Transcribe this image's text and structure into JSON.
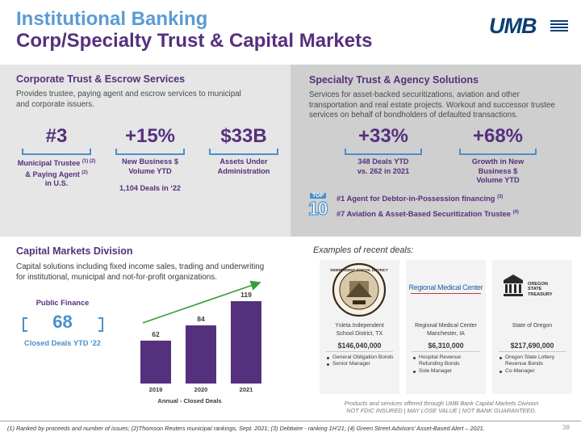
{
  "header": {
    "title_line1": "Institutional Banking",
    "title_line2": "Corp/Specialty Trust & Capital Markets",
    "logo_text": "UMB"
  },
  "corporate_trust": {
    "heading": "Corporate Trust & Escrow Services",
    "description_1": "Provides trustee, paying agent and escrow services to municipal",
    "description_2": "and corporate issuers.",
    "stats": [
      {
        "value": "#3",
        "label_1": "Municipal Trustee",
        "label_1_sup": "(1) (2)",
        "label_2": "& Paying Agent",
        "label_2_sup": "(2)",
        "label_3": "in U.S."
      },
      {
        "value": "+15%",
        "label_1": "New Business $",
        "label_2": "Volume YTD",
        "extra": "1,104 Deals in ‘22"
      },
      {
        "value": "$33B",
        "label_1": "Assets Under",
        "label_2": "Administration"
      }
    ]
  },
  "specialty_trust": {
    "heading": "Specialty Trust & Agency Solutions",
    "description_1": "Services for asset-backed securitizations, aviation and other",
    "description_2": "transportation and real estate projects. Workout and successor trustee",
    "description_3": "services on behalf of bondholders of defaulted transactions.",
    "stats": [
      {
        "value": "+33%",
        "label_1": "348 Deals YTD",
        "label_2": "vs. 262 in 2021"
      },
      {
        "value": "+68%",
        "label_1": "Growth in New",
        "label_2": "Business $",
        "label_3": "Volume YTD"
      }
    ],
    "top10_badge_top": "TOP",
    "top10_badge_num": "10",
    "rankings": [
      {
        "text": "#1 Agent for Debtor-in-Possession financing",
        "sup": "(3)"
      },
      {
        "text": "#7 Aviation & Asset-Based Securitization Trustee",
        "sup": "(4)"
      }
    ]
  },
  "capital_markets": {
    "heading": "Capital Markets Division",
    "description_1": "Capital solutions including fixed income sales, trading and underwriting",
    "description_2": "for institutional, municipal and not-for-profit organizations.",
    "public_finance_label": "Public Finance",
    "public_finance_value": "68",
    "public_finance_caption": "Closed Deals YTD ‘22"
  },
  "chart_data": {
    "type": "bar",
    "categories": [
      "2019",
      "2020",
      "2021"
    ],
    "values": [
      62,
      84,
      119
    ],
    "xlabel": "Annual - Closed Deals",
    "ylim": [
      0,
      140
    ],
    "bar_color": "#55307c",
    "trend_arrow_color": "#3b9a3b"
  },
  "examples": {
    "heading": "Examples of recent deals:",
    "deals": [
      {
        "logo_caption": "INDEPENDENT SCHOOL DISTRICT",
        "org_1": "Ysleta Independent",
        "org_2": "School District, TX",
        "amount": "$146,040,000",
        "items": [
          "General Obligation Bonds",
          "Senior Manager"
        ]
      },
      {
        "logo_caption": "Regional Medical Center",
        "org_1": "Regional Medical Center",
        "org_2": "Manchester, IA",
        "amount": "$6,310,000",
        "items": [
          "Hospital Revenue Refunding Bonds",
          "Sole Manager"
        ]
      },
      {
        "logo_caption": "OREGON STATE TREASURY",
        "org_1": "State of Oregon",
        "org_2": "",
        "amount": "$217,690,000",
        "items": [
          "Oregon State Lottery Revenue Bonds",
          "Co-Manager"
        ]
      }
    ],
    "disclaimer_1": "Products and services offered through UMB Bank Capital Markets Division",
    "disclaimer_2": "NOT FDIC INSURED | MAY LOSE VALUE  | NOT BANK GUARANTEED."
  },
  "footer": {
    "footnote": "(1) Ranked by proceeds and number of issues; (2)Thomson Reuters municipal rankings, Sept. 2021; (3) Debtwire - ranking 1H’21; (4) Green Street Advisors’ Asset-Based Alert – 2021.",
    "page_number": "38"
  },
  "colors": {
    "title_blue": "#5a9bd4",
    "title_purple": "#55307c",
    "accent_blue": "#4b8fcb",
    "brand_navy": "#0c3f74"
  }
}
